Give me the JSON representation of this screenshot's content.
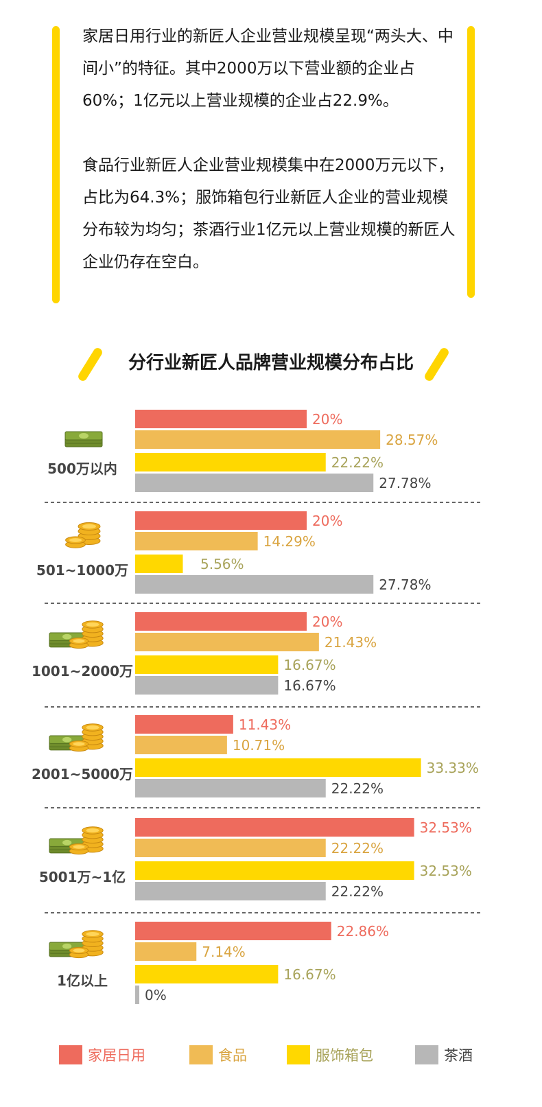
{
  "intro": {
    "paragraph1": "家居日用行业的新匠人企业营业规模呈现“两头大、中间小”的特征。其中2000万以下营业额的企业占60%；1亿元以上营业规模的企业占22.9%。",
    "paragraph2": "食品行业新匠人企业营业规模集中在2000万元以下，占比为64.3%；服饰箱包行业新匠人企业的营业规模分布较为均匀；茶酒行业1亿元以上营业规模的新匠人企业仍存在空白。"
  },
  "colors": {
    "accent": "#ffd500",
    "home": "#ee6b5d",
    "food": "#f0bb55",
    "apparel": "#ffd800",
    "tea": "#b7b7b7",
    "home_text": "#ee6b5d",
    "food_text": "#d9a440",
    "apparel_text": "#a8a35a",
    "tea_text": "#444444"
  },
  "chart_data": {
    "type": "bar",
    "orientation": "horizontal",
    "title": "分行业新匠人品牌营业规模分布占比",
    "categories": [
      "500万以内",
      "501~1000万",
      "1001~2000万",
      "2001~5000万",
      "5001万~1亿",
      "1亿以上"
    ],
    "category_icons": [
      "cash-stack-icon",
      "coin-stack-icon",
      "cash-coins-icon",
      "cash-coins-icon",
      "cash-coins-icon",
      "cash-coins-icon"
    ],
    "series": [
      {
        "name": "家居日用",
        "values": [
          20,
          20,
          20,
          11.43,
          32.53,
          22.86
        ],
        "labels": [
          "20%",
          "20%",
          "20%",
          "11.43%",
          "32.53%",
          "22.86%"
        ]
      },
      {
        "name": "食品",
        "values": [
          28.57,
          14.29,
          21.43,
          10.71,
          22.22,
          7.14
        ],
        "labels": [
          "28.57%",
          "14.29%",
          "21.43%",
          "10.71%",
          "22.22%",
          "7.14%"
        ]
      },
      {
        "name": "服饰箱包",
        "values": [
          22.22,
          5.56,
          16.67,
          33.33,
          32.53,
          16.67
        ],
        "labels": [
          "22.22%",
          "5.56%",
          "16.67%",
          "33.33%",
          "32.53%",
          "16.67%"
        ]
      },
      {
        "name": "茶酒",
        "values": [
          27.78,
          27.78,
          16.67,
          22.22,
          22.22,
          0
        ],
        "labels": [
          "27.78%",
          "27.78%",
          "16.67%",
          "22.22%",
          "22.22%",
          "0%"
        ]
      }
    ],
    "unit": "%",
    "legend_position": "bottom",
    "grid": false
  }
}
